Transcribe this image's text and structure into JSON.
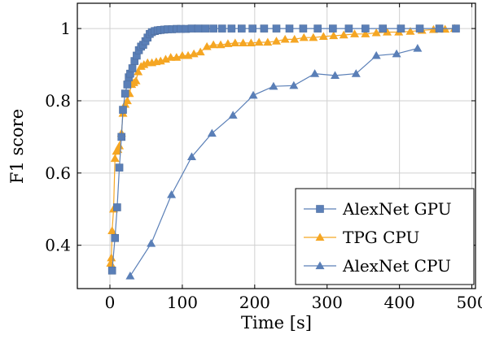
{
  "chart_data": {
    "type": "line",
    "xlabel": "Time [s]",
    "ylabel": "F1 score",
    "xlim": [
      -45,
      505
    ],
    "ylim": [
      0.28,
      1.07
    ],
    "xticks": [
      0,
      100,
      200,
      300,
      400,
      500
    ],
    "yticks": [
      0.4,
      0.6,
      0.8,
      1.0
    ],
    "xtick_labels": [
      "0",
      "100",
      "200",
      "300",
      "400",
      "500"
    ],
    "ytick_labels": [
      "0.4",
      "0.6",
      "0.8",
      "1"
    ],
    "grid": true,
    "legend_position": "bottom-right",
    "series": [
      {
        "name": "AlexNet GPU",
        "color": "#5a7fb7",
        "marker": "square",
        "points": [
          [
            3,
            0.33
          ],
          [
            7,
            0.42
          ],
          [
            10,
            0.505
          ],
          [
            13,
            0.615
          ],
          [
            16,
            0.7
          ],
          [
            18,
            0.775
          ],
          [
            21,
            0.82
          ],
          [
            24,
            0.845
          ],
          [
            26,
            0.865
          ],
          [
            28,
            0.875
          ],
          [
            31,
            0.89
          ],
          [
            34,
            0.91
          ],
          [
            37,
            0.925
          ],
          [
            40,
            0.94
          ],
          [
            43,
            0.95
          ],
          [
            46,
            0.955
          ],
          [
            49,
            0.965
          ],
          [
            52,
            0.975
          ],
          [
            55,
            0.985
          ],
          [
            58,
            0.99
          ],
          [
            62,
            0.993
          ],
          [
            66,
            0.995
          ],
          [
            70,
            0.996
          ],
          [
            75,
            0.997
          ],
          [
            80,
            0.998
          ],
          [
            86,
            0.998
          ],
          [
            92,
            0.999
          ],
          [
            98,
            0.999
          ],
          [
            105,
            0.999
          ],
          [
            113,
            1.0
          ],
          [
            122,
            1.0
          ],
          [
            132,
            1.0
          ],
          [
            143,
            1.0
          ],
          [
            155,
            1.0
          ],
          [
            168,
            1.0
          ],
          [
            182,
            1.0
          ],
          [
            197,
            1.0
          ],
          [
            213,
            1.0
          ],
          [
            230,
            1.0
          ],
          [
            248,
            1.0
          ],
          [
            267,
            1.0
          ],
          [
            287,
            1.0
          ],
          [
            308,
            1.0
          ],
          [
            330,
            1.0
          ],
          [
            353,
            1.0
          ],
          [
            377,
            1.0
          ],
          [
            402,
            1.0
          ],
          [
            428,
            1.0
          ],
          [
            455,
            1.0
          ],
          [
            478,
            1.0
          ]
        ]
      },
      {
        "name": "TPG CPU",
        "color": "#f5a623",
        "marker": "triangle",
        "points": [
          [
            1,
            0.35
          ],
          [
            2,
            0.365
          ],
          [
            3,
            0.44
          ],
          [
            5,
            0.5
          ],
          [
            7,
            0.64
          ],
          [
            9,
            0.66
          ],
          [
            11,
            0.665
          ],
          [
            13,
            0.675
          ],
          [
            16,
            0.71
          ],
          [
            18,
            0.765
          ],
          [
            21,
            0.79
          ],
          [
            24,
            0.8
          ],
          [
            27,
            0.82
          ],
          [
            30,
            0.845
          ],
          [
            33,
            0.85
          ],
          [
            36,
            0.855
          ],
          [
            39,
            0.88
          ],
          [
            43,
            0.895
          ],
          [
            47,
            0.9
          ],
          [
            52,
            0.905
          ],
          [
            58,
            0.905
          ],
          [
            64,
            0.908
          ],
          [
            70,
            0.91
          ],
          [
            77,
            0.915
          ],
          [
            84,
            0.92
          ],
          [
            92,
            0.92
          ],
          [
            100,
            0.925
          ],
          [
            108,
            0.925
          ],
          [
            116,
            0.93
          ],
          [
            125,
            0.935
          ],
          [
            134,
            0.95
          ],
          [
            143,
            0.955
          ],
          [
            153,
            0.955
          ],
          [
            163,
            0.958
          ],
          [
            173,
            0.96
          ],
          [
            184,
            0.96
          ],
          [
            195,
            0.96
          ],
          [
            206,
            0.962
          ],
          [
            218,
            0.962
          ],
          [
            230,
            0.965
          ],
          [
            242,
            0.97
          ],
          [
            255,
            0.97
          ],
          [
            268,
            0.975
          ],
          [
            281,
            0.975
          ],
          [
            295,
            0.978
          ],
          [
            309,
            0.98
          ],
          [
            323,
            0.982
          ],
          [
            338,
            0.985
          ],
          [
            353,
            0.985
          ],
          [
            368,
            0.988
          ],
          [
            383,
            0.99
          ],
          [
            399,
            0.99
          ],
          [
            415,
            0.992
          ],
          [
            431,
            0.995
          ],
          [
            447,
            0.997
          ],
          [
            463,
            0.998
          ],
          [
            476,
            1.0
          ]
        ]
      },
      {
        "name": "AlexNet CPU",
        "color": "#5a7fb7",
        "marker": "triangle",
        "points": [
          [
            28,
            0.315
          ],
          [
            57,
            0.405
          ],
          [
            85,
            0.54
          ],
          [
            113,
            0.645
          ],
          [
            141,
            0.71
          ],
          [
            170,
            0.76
          ],
          [
            198,
            0.815
          ],
          [
            226,
            0.84
          ],
          [
            254,
            0.842
          ],
          [
            283,
            0.875
          ],
          [
            311,
            0.87
          ],
          [
            340,
            0.875
          ],
          [
            368,
            0.925
          ],
          [
            396,
            0.93
          ],
          [
            425,
            0.945
          ]
        ]
      }
    ]
  }
}
